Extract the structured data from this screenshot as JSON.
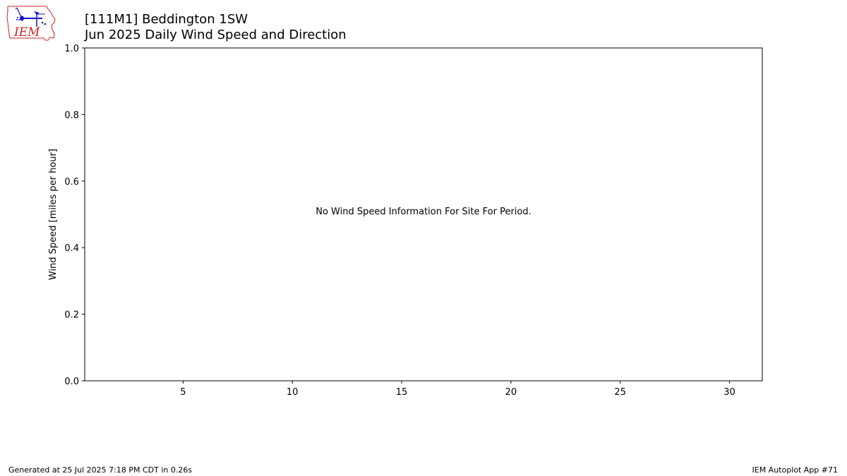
{
  "header": {
    "logo_text": "IEM",
    "title_line1": "[111M1] Beddington 1SW",
    "title_line2": "Jun 2025 Daily Wind Speed and Direction"
  },
  "chart_data": {
    "type": "bar",
    "title": "[111M1] Beddington 1SW\nJun 2025 Daily Wind Speed and Direction",
    "xlabel": "",
    "ylabel": "Wind Speed [miles per hour]",
    "xlim": [
      0.5,
      31.5
    ],
    "ylim": [
      0,
      1
    ],
    "x_ticks": [
      5,
      10,
      15,
      20,
      25,
      30
    ],
    "y_ticks": [
      0.0,
      0.2,
      0.4,
      0.6,
      0.8,
      1.0
    ],
    "y_tick_labels": [
      "0.0",
      "0.2",
      "0.4",
      "0.6",
      "0.8",
      "1.0"
    ],
    "series": [],
    "annotation": "No Wind Speed Information For Site For Period.",
    "grid": false
  },
  "footer": {
    "generated": "Generated at 25 Jul 2025 7:18 PM CDT in 0.26s",
    "app": "IEM Autoplot App #71"
  },
  "colors": {
    "logo_red": "#cc2222",
    "logo_blue": "#1111cc"
  }
}
